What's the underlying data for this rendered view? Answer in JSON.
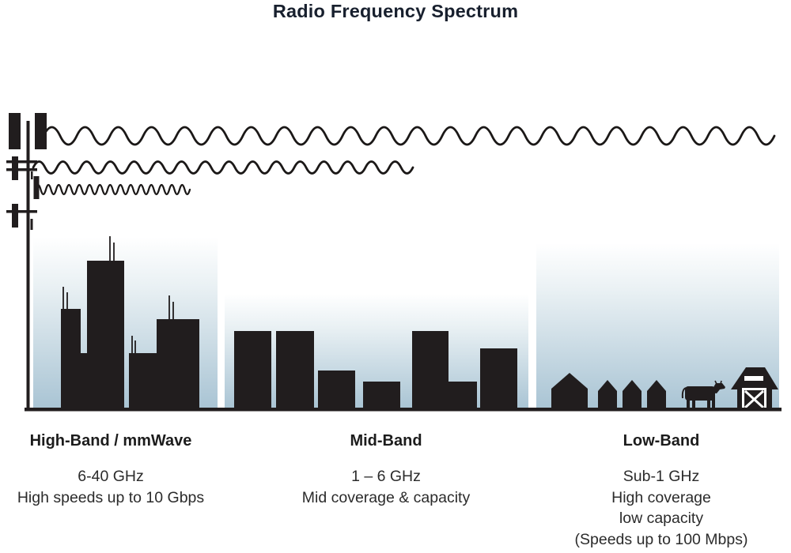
{
  "title": "Radio Frequency Spectrum",
  "colors": {
    "ink": "#211d1e",
    "title_text": "#18202e",
    "body_text": "#2b2b2b",
    "sky_top": "#ffffff",
    "sky_bottom": "#a9c4d4"
  },
  "waves": [
    {
      "name": "low-band-wave",
      "geometry": "55,172,42,11,22"
    },
    {
      "name": "mid-band-wave",
      "geometry": "42,212,30,7.5,16"
    },
    {
      "name": "high-band-wave",
      "geometry": "45,240,13,6,15"
    }
  ],
  "icons": {
    "tower": "cell-tower-icon",
    "high_band": "dense-city-skyline-icon",
    "mid_band": "city-skyline-icon",
    "low_band": "rural-houses-cow-barn-icon"
  },
  "bands": [
    {
      "name": "High-Band / mmWave",
      "freq": "6-40 GHz",
      "desc_lines": [
        "High speeds up to 10 Gbps"
      ]
    },
    {
      "name": "Mid-Band",
      "freq": "1 – 6 GHz",
      "desc_lines": [
        "Mid coverage & capacity"
      ]
    },
    {
      "name": "Low-Band",
      "freq": "Sub-1 GHz",
      "desc_lines": [
        "High coverage",
        "low capacity",
        "(Speeds up to 100 Mbps)"
      ]
    }
  ]
}
